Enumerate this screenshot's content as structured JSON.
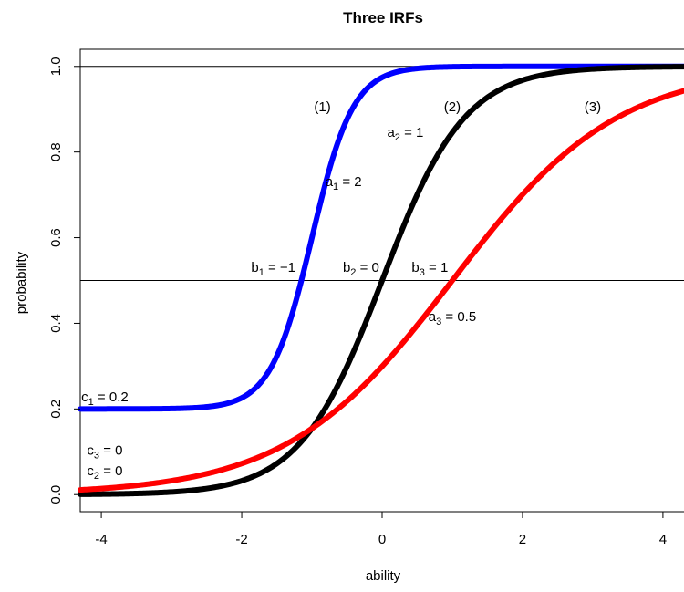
{
  "chart_data": {
    "type": "line",
    "title": "Three IRFs",
    "xlabel": "ability",
    "ylabel": "probability",
    "xlim": [
      -4.3,
      4.3
    ],
    "ylim": [
      -0.04,
      1.04
    ],
    "xticks": [
      -4,
      -2,
      0,
      2,
      4
    ],
    "xtick_labels": [
      "-4",
      "-2",
      "0",
      "2",
      "4"
    ],
    "yticks": [
      0.0,
      0.2,
      0.4,
      0.6,
      0.8,
      1.0
    ],
    "ytick_labels": [
      "0.0",
      "0.2",
      "0.4",
      "0.6",
      "0.8",
      "1.0"
    ],
    "grid": false,
    "reference_lines": {
      "horizontal": [
        0.5,
        1.0
      ]
    },
    "series": [
      {
        "a": 2.0,
        "b": -1.0,
        "c": 0.2,
        "color": "#0000ff",
        "label": "(1)"
      },
      {
        "a": 1.0,
        "b": 0.0,
        "c": 0.0,
        "color": "#000000",
        "label": "(2)"
      },
      {
        "a": 0.5,
        "b": 1.0,
        "c": 0.0,
        "color": "#ff0000",
        "label": "(3)"
      }
    ],
    "annotations": [
      {
        "base": "(1)",
        "sub": "",
        "rest": "",
        "x": -0.85,
        "y": 0.895
      },
      {
        "base": "(2)",
        "sub": "",
        "rest": "",
        "x": 1.0,
        "y": 0.895
      },
      {
        "base": "(3)",
        "sub": "",
        "rest": "",
        "x": 3.0,
        "y": 0.895
      },
      {
        "base": "a",
        "sub": "2",
        "rest": " = 1",
        "x": 0.33,
        "y": 0.835
      },
      {
        "base": "a",
        "sub": "1",
        "rest": " = 2",
        "x": -0.55,
        "y": 0.72
      },
      {
        "base": "b",
        "sub": "1",
        "rest": " = −1",
        "x": -1.55,
        "y": 0.52
      },
      {
        "base": "b",
        "sub": "2",
        "rest": " = 0",
        "x": -0.3,
        "y": 0.52
      },
      {
        "base": "b",
        "sub": "3",
        "rest": " = 1",
        "x": 0.68,
        "y": 0.52
      },
      {
        "base": "a",
        "sub": "3",
        "rest": " = 0.5",
        "x": 1.0,
        "y": 0.405
      },
      {
        "base": "c",
        "sub": "1",
        "rest": " = 0.2",
        "x": -3.95,
        "y": 0.218
      },
      {
        "base": "c",
        "sub": "3",
        "rest": " = 0",
        "x": -3.95,
        "y": 0.093
      },
      {
        "base": "c",
        "sub": "2",
        "rest": " = 0",
        "x": -3.95,
        "y": 0.045
      }
    ]
  }
}
